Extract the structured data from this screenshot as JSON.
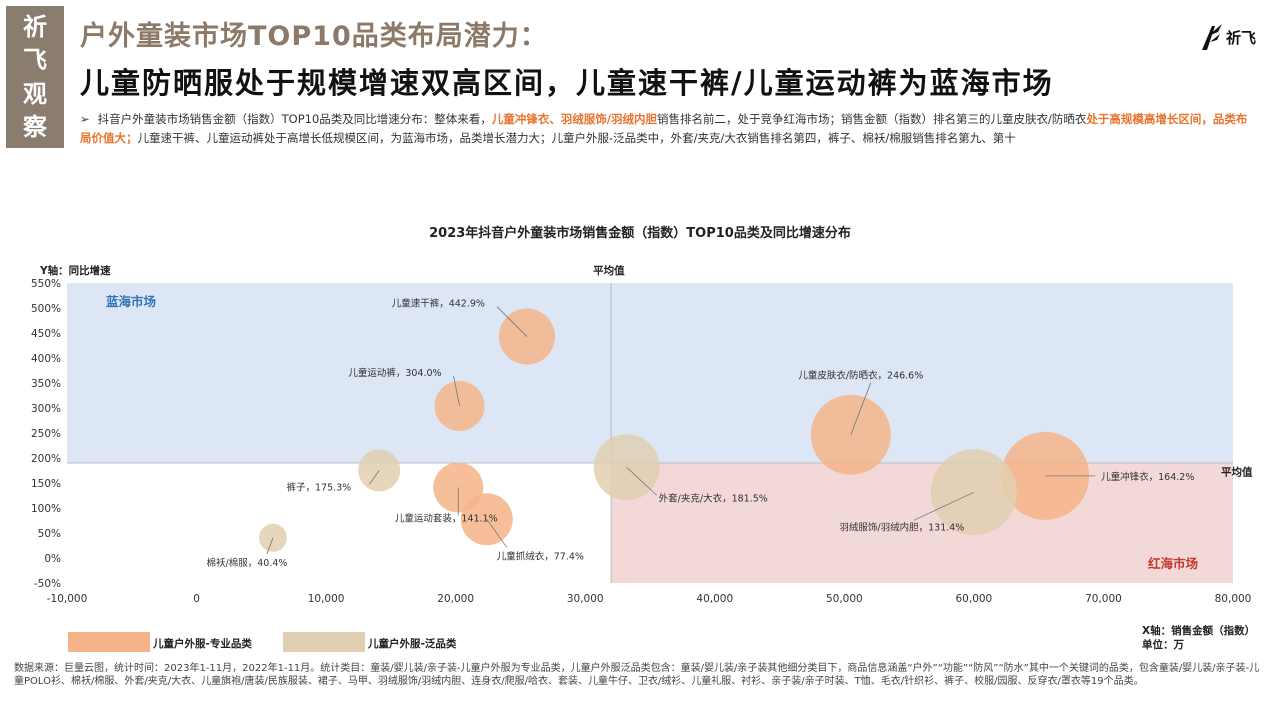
{
  "badge": {
    "chars": [
      "祈",
      "飞",
      "观",
      "察"
    ]
  },
  "header": {
    "title1": "户外童装市场TOP10品类布局潜力：",
    "title2": "儿童防晒服处于规模增速双高区间，儿童速干裤/儿童运动裤为蓝海市场",
    "logo_text": "祈飞"
  },
  "description": {
    "arrow": "➢",
    "p1": "抖音户外童装市场销售金额（指数）TOP10品类及同比增速分布：整体来看，",
    "h1": "儿童冲锋衣、羽绒服饰/羽绒内胆",
    "p2": "销售排名前二，处于竞争红海市场；销售金额（指数）排名第三的儿童皮肤衣/防晒衣",
    "h2": "处于高规模高增长区间，品类布局价值大；",
    "p3": "儿童速干裤、儿童运动裤处于高增长低规模区间，为蓝海市场，品类增长潜力大；儿童户外服-泛品类中，外套/夹克/大衣销售排名第四，裤子、棉袄/棉服销售排名第九、第十"
  },
  "chart_data": {
    "type": "scatter",
    "title": "2023年抖音户外童装市场销售金额（指数）TOP10品类及同比增速分布",
    "ylabel": "Y轴：同比增速",
    "xlabel": "X轴：销售金额（指数）",
    "unit": "单位：万",
    "xlim": [
      -10000,
      80000
    ],
    "ylim": [
      -50,
      550
    ],
    "x_ticks": [
      "-10,000",
      "0",
      "10,000",
      "20,000",
      "30,000",
      "40,000",
      "50,000",
      "60,000",
      "70,000",
      "80,000"
    ],
    "y_ticks": [
      "-50%",
      "0%",
      "50%",
      "100%",
      "150%",
      "200%",
      "250%",
      "300%",
      "350%",
      "400%",
      "450%",
      "500%",
      "550%"
    ],
    "avg_x": 32000,
    "avg_y": 190,
    "avg_x_label": "平均值",
    "avg_y_label": "平均值",
    "quadrants": {
      "blue": "蓝海市场",
      "red": "红海市场"
    },
    "series": [
      {
        "name": "儿童户外服-专业品类",
        "color": "#f5b488"
      },
      {
        "name": "儿童户外服-泛品类",
        "color": "#e0cfb0"
      }
    ],
    "points": [
      {
        "label": "儿童速干裤，442.9%",
        "x": 25500,
        "y": 442.9,
        "series": 0,
        "size": 28
      },
      {
        "label": "儿童运动裤，304.0%",
        "x": 20300,
        "y": 304.0,
        "series": 0,
        "size": 25
      },
      {
        "label": "儿童皮肤衣/防晒衣，246.6%",
        "x": 50500,
        "y": 246.6,
        "series": 0,
        "size": 40
      },
      {
        "label": "儿童冲锋衣，164.2%",
        "x": 65500,
        "y": 164.2,
        "series": 0,
        "size": 44
      },
      {
        "label": "儿童运动套装，141.1%",
        "x": 20200,
        "y": 141.1,
        "series": 0,
        "size": 25
      },
      {
        "label": "儿童抓绒衣，77.4%",
        "x": 22400,
        "y": 77.4,
        "series": 0,
        "size": 26
      },
      {
        "label": "外套/夹克/大衣，181.5%",
        "x": 33200,
        "y": 181.5,
        "series": 1,
        "size": 33
      },
      {
        "label": "羽绒服饰/羽绒内胆，131.4%",
        "x": 60000,
        "y": 131.4,
        "series": 1,
        "size": 43
      },
      {
        "label": "裤子，175.3%",
        "x": 14100,
        "y": 175.3,
        "series": 1,
        "size": 21
      },
      {
        "label": "棉袄/棉服，40.4%",
        "x": 5900,
        "y": 40.4,
        "series": 1,
        "size": 14
      }
    ]
  },
  "source": "数据来源：巨量云图，统计时间：2023年1-11月，2022年1-11月。统计类目：童装/婴儿装/亲子装-儿童户外服为专业品类，儿童户外服泛品类包含：童装/婴儿装/亲子装其他细分类目下，商品信息涵盖“户外”“功能”“防风”“防水”其中一个关键词的品类，包含童装/婴儿装/亲子装-儿童POLO衫、棉袄/棉服、外套/夹克/大衣、儿童旗袍/唐装/民族服装、裙子、马甲、羽绒服饰/羽绒内胆、连身衣/爬服/哈衣、套装、儿童牛仔、卫衣/绒衫、儿童礼服、衬衫、亲子装/亲子时装、T恤、毛衣/针织衫、裤子、校服/园服、反穿衣/罩衣等19个品类。"
}
